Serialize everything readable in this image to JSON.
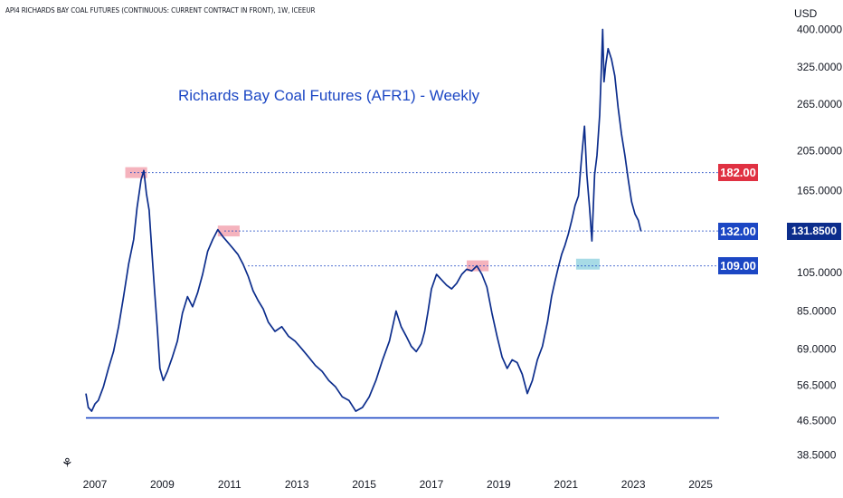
{
  "header": {
    "symbol_line": "API4 RICHARDS BAY COAL FUTURES (CONTINUOUS: CURRENT CONTRACT IN FRONT), 1W, ICEEUR",
    "currency": "USD"
  },
  "chart_data": {
    "type": "line",
    "title": "Richards Bay Coal Futures (AFR1) - Weekly",
    "y_scale": "log",
    "ylim": [
      36,
      430
    ],
    "xlim": [
      2006.7,
      2025.6
    ],
    "x_ticks": [
      "2007",
      "2009",
      "2011",
      "2013",
      "2015",
      "2017",
      "2019",
      "2021",
      "2023",
      "2025"
    ],
    "y_ticks": [
      "400.0000",
      "325.0000",
      "265.0000",
      "205.0000",
      "165.0000",
      "105.0000",
      "85.0000",
      "69.0000",
      "56.5000",
      "46.5000",
      "38.5000"
    ],
    "series": [
      {
        "color": "#0c2d8c",
        "x": [
          2006.78,
          2006.85,
          2006.95,
          2007.05,
          2007.15,
          2007.3,
          2007.45,
          2007.6,
          2007.75,
          2007.9,
          2008.05,
          2008.2,
          2008.3,
          2008.42,
          2008.5,
          2008.58,
          2008.66,
          2008.74,
          2008.82,
          2008.9,
          2008.98,
          2009.08,
          2009.2,
          2009.35,
          2009.5,
          2009.65,
          2009.8,
          2009.95,
          2010.1,
          2010.25,
          2010.4,
          2010.55,
          2010.7,
          2010.85,
          2011.0,
          2011.15,
          2011.3,
          2011.45,
          2011.6,
          2011.75,
          2011.9,
          2012.05,
          2012.2,
          2012.4,
          2012.6,
          2012.8,
          2013.0,
          2013.2,
          2013.4,
          2013.6,
          2013.8,
          2014.0,
          2014.2,
          2014.4,
          2014.6,
          2014.8,
          2015.0,
          2015.2,
          2015.4,
          2015.6,
          2015.8,
          2016.0,
          2016.15,
          2016.3,
          2016.45,
          2016.6,
          2016.75,
          2016.85,
          2016.95,
          2017.05,
          2017.2,
          2017.35,
          2017.5,
          2017.65,
          2017.8,
          2017.95,
          2018.1,
          2018.25,
          2018.4,
          2018.55,
          2018.7,
          2018.85,
          2019.0,
          2019.15,
          2019.3,
          2019.45,
          2019.6,
          2019.75,
          2019.9,
          2020.05,
          2020.2,
          2020.35,
          2020.5,
          2020.62,
          2020.72,
          2020.82,
          2020.92,
          2021.02,
          2021.12,
          2021.22,
          2021.32,
          2021.42,
          2021.52,
          2021.6,
          2021.67,
          2021.75,
          2021.82,
          2021.9,
          2021.97,
          2022.05,
          2022.1,
          2022.14,
          2022.18,
          2022.23,
          2022.3,
          2022.4,
          2022.5,
          2022.6,
          2022.7,
          2022.8,
          2022.9,
          2023.0,
          2023.1,
          2023.2,
          2023.28
        ],
        "values": [
          54,
          50,
          49,
          51,
          52,
          56,
          62,
          68,
          78,
          92,
          110,
          126,
          150,
          175,
          184,
          162,
          148,
          118,
          95,
          78,
          62,
          58,
          61,
          66,
          72,
          84,
          92,
          87,
          94,
          104,
          118,
          126,
          133,
          128,
          124,
          120,
          116,
          110,
          103,
          95,
          90,
          86,
          80,
          76,
          78,
          74,
          72,
          69,
          66,
          63,
          61,
          58,
          56,
          53,
          52,
          49,
          50,
          53,
          58,
          65,
          72,
          85,
          78,
          74,
          70,
          68,
          71,
          76,
          85,
          96,
          104,
          101,
          98,
          96,
          99,
          104,
          107,
          106,
          109,
          104,
          97,
          84,
          74,
          66,
          62,
          65,
          64,
          60,
          54,
          58,
          65,
          70,
          80,
          92,
          100,
          108,
          116,
          122,
          130,
          140,
          152,
          160,
          200,
          235,
          180,
          150,
          125,
          180,
          200,
          250,
          320,
          400,
          300,
          330,
          360,
          340,
          310,
          260,
          225,
          200,
          175,
          155,
          145,
          140,
          131.85
        ]
      }
    ],
    "horizontal_levels": [
      {
        "value": 182.0,
        "label": "182.00",
        "color": "#e03142"
      },
      {
        "value": 132.0,
        "label": "132.00",
        "color": "#1c47c4"
      },
      {
        "value": 109.0,
        "label": "109.00",
        "color": "#1c47c4"
      }
    ],
    "support_line": {
      "value": 47.2
    },
    "last_price": {
      "value": 131.85,
      "label": "131.8500",
      "color": "#0c2d8c"
    },
    "highlight_boxes": [
      {
        "x0": 2007.95,
        "x1": 2008.6,
        "value": 182,
        "color": "#f5b3bd"
      },
      {
        "x0": 2010.7,
        "x1": 2011.35,
        "value": 132,
        "color": "#f5b3bd"
      },
      {
        "x0": 2018.1,
        "x1": 2018.75,
        "value": 109,
        "color": "#f5b3bd"
      },
      {
        "x0": 2021.35,
        "x1": 2022.05,
        "value": 110,
        "color": "#a7dbe6"
      }
    ],
    "grid": false,
    "legend": "none"
  }
}
